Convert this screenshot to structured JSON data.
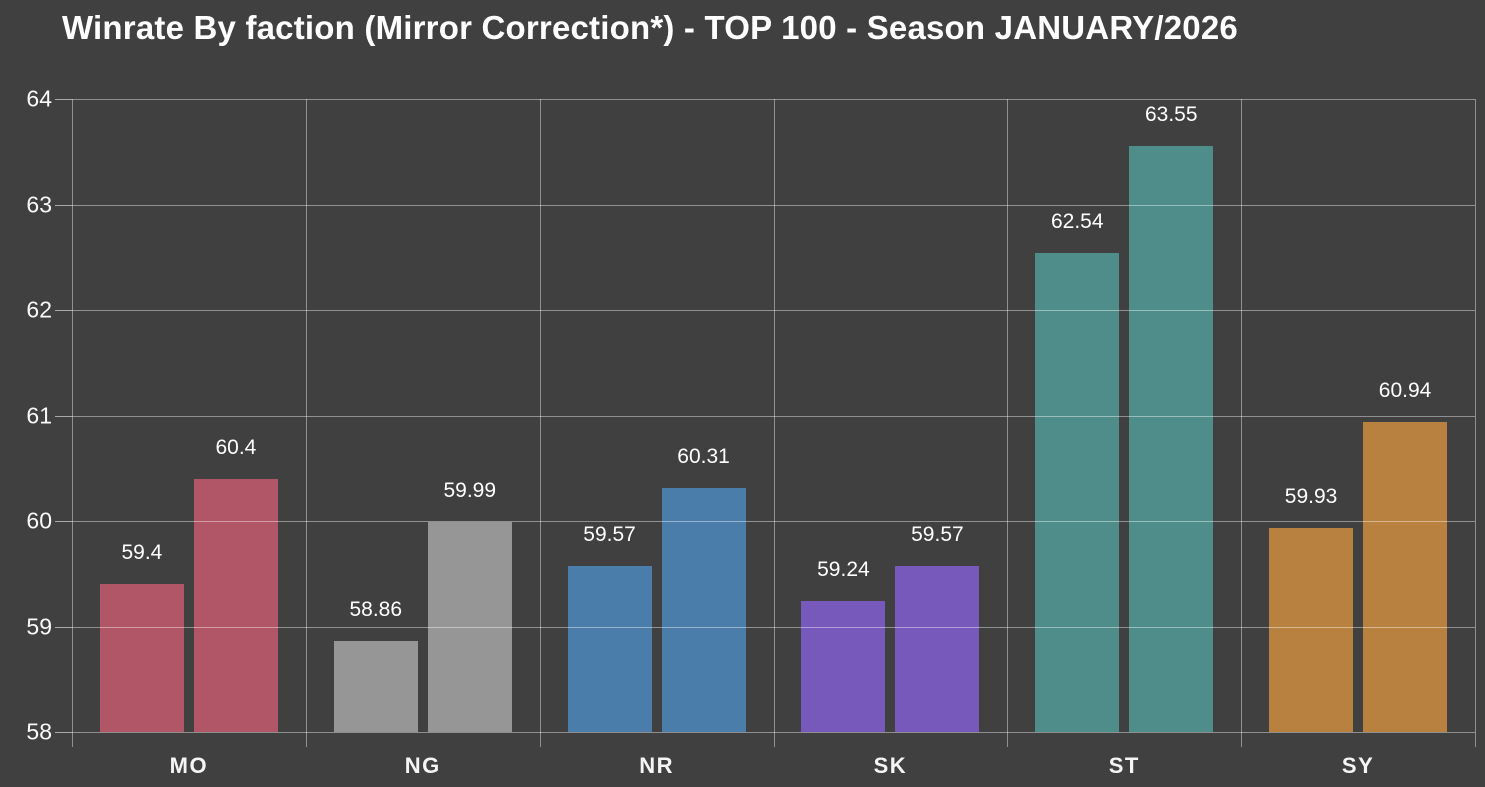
{
  "title": "Winrate By faction (Mirror Correction*) - TOP 100 - Season JANUARY/2026",
  "chart_data": {
    "type": "bar",
    "title": "Winrate By faction (Mirror Correction*) - TOP 100 - Season JANUARY/2026",
    "categories": [
      "MO",
      "NG",
      "NR",
      "SK",
      "ST",
      "SY"
    ],
    "series": [
      {
        "name": "bar-left",
        "values": [
          59.4,
          58.86,
          59.57,
          59.24,
          62.54,
          59.93
        ]
      },
      {
        "name": "bar-right",
        "values": [
          60.4,
          59.99,
          60.31,
          59.57,
          63.55,
          60.94
        ]
      }
    ],
    "value_labels": [
      [
        "59.4",
        "60.4"
      ],
      [
        "58.86",
        "59.99"
      ],
      [
        "59.57",
        "60.31"
      ],
      [
        "59.24",
        "59.57"
      ],
      [
        "62.54",
        "63.55"
      ],
      [
        "59.93",
        "60.94"
      ]
    ],
    "bar_colors": {
      "MO": "#b05666",
      "NG": "#969696",
      "NR": "#4b7dab",
      "SK": "#7659bb",
      "ST": "#4f8d8b",
      "SY": "#b8813f"
    },
    "xlabel": "",
    "ylabel": "",
    "ylim": [
      58,
      64
    ],
    "yticks": [
      58,
      59,
      60,
      61,
      62,
      63,
      64
    ],
    "grid": true,
    "legend": "none",
    "background_color": "#404040",
    "text_color": "#ffffff",
    "gridline_color": "rgba(255,255,255,0.42)"
  }
}
